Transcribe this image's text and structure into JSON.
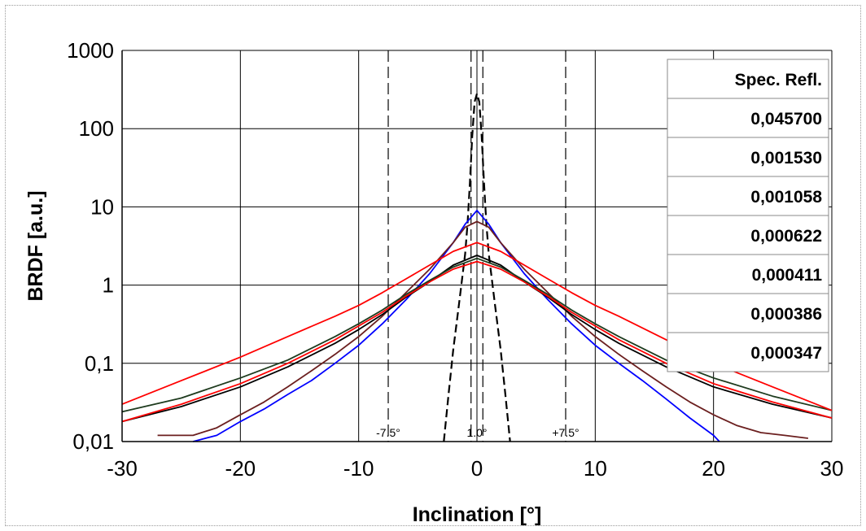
{
  "chart_data": {
    "type": "line",
    "xlabel": "Inclination [°]",
    "ylabel": "BRDF [a.u.]",
    "xlim": [
      -30,
      30
    ],
    "ylim": [
      0.01,
      1000
    ],
    "yscale": "log",
    "x_ticks": [
      "-30",
      "-20",
      "-10",
      "0",
      "10",
      "20",
      "30"
    ],
    "y_ticks": [
      "0,01",
      "0,1",
      "1",
      "10",
      "100",
      "1000"
    ],
    "grid": true,
    "annotations": [
      "-7.5°",
      "1.0°",
      "+7.5°"
    ],
    "annotation_lines": [
      -7.5,
      -0.5,
      0.5,
      7.5
    ],
    "legend": {
      "placement": "top-right",
      "header": "Spec. Refl.",
      "entries": [
        "0,045700",
        "0,001530",
        "0,001058",
        "0,000622",
        "0,000411",
        "0,000386",
        "0,000347"
      ]
    },
    "series": [
      {
        "color": "#000000",
        "style": "dashed",
        "x": [
          -2.8,
          -2.6,
          -2.4,
          -2.0,
          -1.5,
          -1.0,
          -0.8,
          -0.6,
          -0.4,
          -0.2,
          0,
          0.2,
          0.4,
          0.6,
          0.8,
          1.0,
          1.5,
          2.0,
          2.4,
          2.6,
          2.8
        ],
        "y": [
          0.01,
          0.02,
          0.04,
          0.15,
          0.6,
          2.5,
          6,
          20,
          80,
          220,
          280,
          220,
          80,
          20,
          6,
          2.5,
          0.6,
          0.15,
          0.04,
          0.02,
          0.01
        ]
      },
      {
        "color": "#0000ff",
        "style": "solid",
        "x": [
          -24,
          -22,
          -20,
          -18,
          -16,
          -14,
          -12,
          -10,
          -8,
          -6,
          -4,
          -2,
          -1,
          0,
          1,
          2,
          4,
          6,
          8,
          10,
          12,
          14,
          16,
          18,
          20,
          20.5
        ],
        "y": [
          0.01,
          0.012,
          0.018,
          0.026,
          0.04,
          0.06,
          0.1,
          0.17,
          0.32,
          0.65,
          1.4,
          3.5,
          6,
          9,
          6,
          3.5,
          1.4,
          0.65,
          0.32,
          0.17,
          0.1,
          0.06,
          0.035,
          0.02,
          0.012,
          0.01
        ]
      },
      {
        "color": "#6b1f1f",
        "style": "solid",
        "x": [
          -27,
          -24,
          -22,
          -20,
          -18,
          -16,
          -14,
          -12,
          -10,
          -8,
          -6,
          -4,
          -2,
          -1,
          0,
          1,
          2,
          4,
          6,
          8,
          10,
          12,
          14,
          16,
          18,
          20,
          22,
          24,
          26,
          28
        ],
        "y": [
          0.012,
          0.012,
          0.015,
          0.022,
          0.032,
          0.05,
          0.08,
          0.13,
          0.22,
          0.4,
          0.8,
          1.6,
          3.5,
          5.5,
          6.5,
          5.5,
          3.5,
          1.6,
          0.8,
          0.4,
          0.22,
          0.13,
          0.08,
          0.05,
          0.032,
          0.022,
          0.016,
          0.013,
          0.012,
          0.011
        ]
      },
      {
        "color": "#000000",
        "style": "solid",
        "x": [
          -30,
          -25,
          -20,
          -16,
          -12,
          -10,
          -8,
          -6,
          -4,
          -2,
          0,
          2,
          4,
          6,
          8,
          10,
          12,
          16,
          20,
          25,
          30
        ],
        "y": [
          0.018,
          0.028,
          0.05,
          0.09,
          0.18,
          0.27,
          0.42,
          0.7,
          1.1,
          1.8,
          2.4,
          1.8,
          1.1,
          0.7,
          0.42,
          0.27,
          0.18,
          0.09,
          0.05,
          0.03,
          0.02
        ]
      },
      {
        "color": "#ff0000",
        "style": "solid",
        "x": [
          -30,
          -25,
          -20,
          -16,
          -12,
          -10,
          -8,
          -6,
          -4,
          -2,
          0,
          2,
          4,
          6,
          8,
          10,
          12,
          16,
          20,
          25,
          30
        ],
        "y": [
          0.018,
          0.03,
          0.055,
          0.1,
          0.2,
          0.3,
          0.45,
          0.72,
          1.1,
          1.6,
          2.0,
          1.6,
          1.1,
          0.72,
          0.45,
          0.3,
          0.2,
          0.1,
          0.055,
          0.032,
          0.02
        ]
      },
      {
        "color": "#1e3b1e",
        "style": "solid",
        "x": [
          -30,
          -25,
          -20,
          -16,
          -12,
          -10,
          -8,
          -6,
          -4,
          -2,
          0,
          2,
          4,
          6,
          8,
          10,
          12,
          16,
          20,
          25,
          30
        ],
        "y": [
          0.024,
          0.036,
          0.065,
          0.11,
          0.22,
          0.32,
          0.48,
          0.76,
          1.15,
          1.7,
          2.2,
          1.7,
          1.15,
          0.76,
          0.48,
          0.32,
          0.22,
          0.11,
          0.065,
          0.038,
          0.025
        ]
      },
      {
        "color": "#ff0000",
        "style": "solid",
        "x": [
          -30,
          -25,
          -20,
          -16,
          -12,
          -10,
          -8,
          -6,
          -4,
          -2,
          0,
          2,
          4,
          6,
          8,
          10,
          12,
          16,
          20,
          25,
          30
        ],
        "y": [
          0.03,
          0.06,
          0.12,
          0.22,
          0.4,
          0.55,
          0.8,
          1.2,
          1.8,
          2.7,
          3.5,
          2.7,
          1.8,
          1.2,
          0.8,
          0.55,
          0.4,
          0.2,
          0.1,
          0.05,
          0.025
        ]
      }
    ]
  }
}
